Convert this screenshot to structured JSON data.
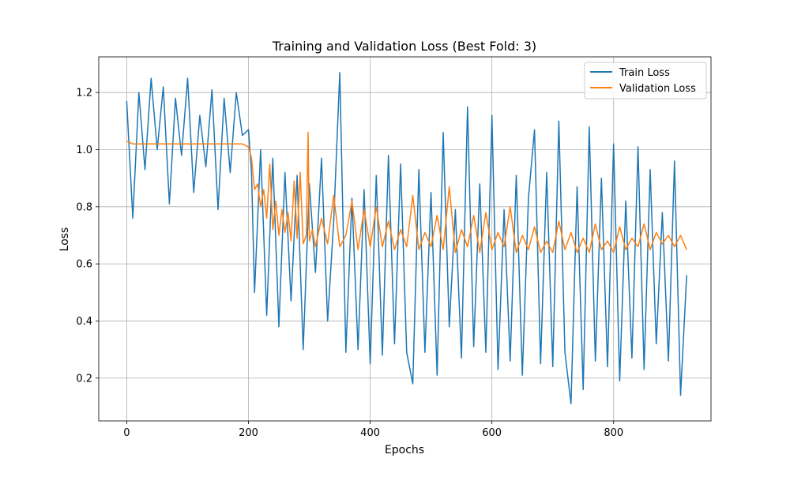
{
  "chart_data": {
    "type": "line",
    "title": "Training and Validation Loss (Best Fold: 3)",
    "xlabel": "Epochs",
    "ylabel": "Loss",
    "xlim": [
      -46,
      960
    ],
    "ylim": [
      0.05,
      1.325
    ],
    "xticks": [
      0,
      200,
      400,
      600,
      800
    ],
    "yticks": [
      0.2,
      0.4,
      0.6,
      0.8,
      1.0,
      1.2
    ],
    "xtick_labels": [
      "0",
      "200",
      "400",
      "600",
      "800"
    ],
    "ytick_labels": [
      "0.2",
      "0.4",
      "0.6",
      "0.8",
      "1.0",
      "1.2"
    ],
    "grid": true,
    "legend_position": "upper right",
    "colors": {
      "train": "#1f77b4",
      "validation": "#ff7f0e",
      "grid": "#b0b0b0"
    },
    "series": [
      {
        "name": "Train Loss",
        "x": [
          0,
          10,
          20,
          30,
          40,
          50,
          60,
          70,
          80,
          90,
          100,
          110,
          120,
          130,
          140,
          150,
          160,
          170,
          180,
          190,
          200,
          205,
          210,
          220,
          230,
          240,
          250,
          260,
          270,
          280,
          290,
          300,
          310,
          320,
          330,
          340,
          350,
          360,
          370,
          380,
          390,
          400,
          410,
          420,
          430,
          440,
          450,
          460,
          470,
          480,
          490,
          500,
          510,
          520,
          530,
          540,
          550,
          560,
          570,
          580,
          590,
          600,
          610,
          620,
          630,
          640,
          650,
          660,
          670,
          680,
          690,
          700,
          710,
          720,
          730,
          740,
          750,
          760,
          770,
          780,
          790,
          800,
          810,
          820,
          830,
          840,
          850,
          860,
          870,
          880,
          890,
          900,
          910,
          920
        ],
        "y": [
          1.17,
          0.76,
          1.2,
          0.93,
          1.25,
          1.0,
          1.22,
          0.81,
          1.18,
          0.98,
          1.25,
          0.85,
          1.12,
          0.94,
          1.21,
          0.79,
          1.18,
          0.92,
          1.2,
          1.05,
          1.07,
          0.92,
          0.5,
          1.0,
          0.42,
          0.97,
          0.38,
          0.92,
          0.47,
          0.91,
          0.3,
          0.88,
          0.57,
          0.97,
          0.4,
          0.75,
          1.27,
          0.29,
          0.83,
          0.3,
          0.86,
          0.25,
          0.91,
          0.28,
          0.98,
          0.32,
          0.95,
          0.29,
          0.18,
          0.93,
          0.29,
          0.85,
          0.21,
          1.06,
          0.38,
          0.79,
          0.27,
          1.15,
          0.31,
          0.88,
          0.29,
          1.12,
          0.23,
          0.79,
          0.26,
          0.91,
          0.21,
          0.83,
          1.07,
          0.25,
          0.92,
          0.24,
          1.1,
          0.29,
          0.11,
          0.87,
          0.16,
          1.08,
          0.26,
          0.9,
          0.24,
          1.02,
          0.19,
          0.82,
          0.27,
          1.01,
          0.23,
          0.93,
          0.32,
          0.78,
          0.26,
          0.96,
          0.14,
          0.56
        ]
      },
      {
        "name": "Validation Loss",
        "x": [
          0,
          10,
          20,
          50,
          100,
          150,
          190,
          200,
          205,
          210,
          215,
          220,
          225,
          230,
          235,
          240,
          245,
          250,
          255,
          260,
          265,
          270,
          275,
          280,
          285,
          290,
          295,
          298,
          300,
          305,
          310,
          320,
          330,
          340,
          350,
          360,
          370,
          380,
          390,
          400,
          410,
          420,
          430,
          440,
          450,
          460,
          470,
          480,
          490,
          500,
          510,
          520,
          530,
          540,
          550,
          560,
          570,
          580,
          590,
          600,
          610,
          620,
          630,
          640,
          650,
          660,
          670,
          680,
          690,
          700,
          710,
          720,
          730,
          740,
          750,
          760,
          770,
          780,
          790,
          800,
          810,
          820,
          830,
          840,
          850,
          860,
          870,
          880,
          890,
          900,
          910,
          920
        ],
        "y": [
          1.03,
          1.02,
          1.02,
          1.02,
          1.02,
          1.02,
          1.02,
          1.01,
          0.97,
          0.86,
          0.88,
          0.8,
          0.86,
          0.76,
          0.95,
          0.72,
          0.82,
          0.7,
          0.79,
          0.71,
          0.78,
          0.68,
          0.89,
          0.69,
          0.92,
          0.67,
          0.7,
          1.06,
          0.68,
          0.72,
          0.66,
          0.76,
          0.67,
          0.84,
          0.66,
          0.7,
          0.82,
          0.65,
          0.79,
          0.66,
          0.8,
          0.66,
          0.75,
          0.65,
          0.72,
          0.66,
          0.84,
          0.65,
          0.71,
          0.66,
          0.77,
          0.65,
          0.87,
          0.64,
          0.72,
          0.66,
          0.77,
          0.64,
          0.78,
          0.65,
          0.71,
          0.66,
          0.8,
          0.64,
          0.7,
          0.65,
          0.73,
          0.64,
          0.68,
          0.64,
          0.75,
          0.65,
          0.71,
          0.64,
          0.69,
          0.64,
          0.74,
          0.65,
          0.68,
          0.64,
          0.73,
          0.65,
          0.69,
          0.66,
          0.74,
          0.65,
          0.71,
          0.67,
          0.7,
          0.66,
          0.7,
          0.65
        ]
      }
    ]
  }
}
